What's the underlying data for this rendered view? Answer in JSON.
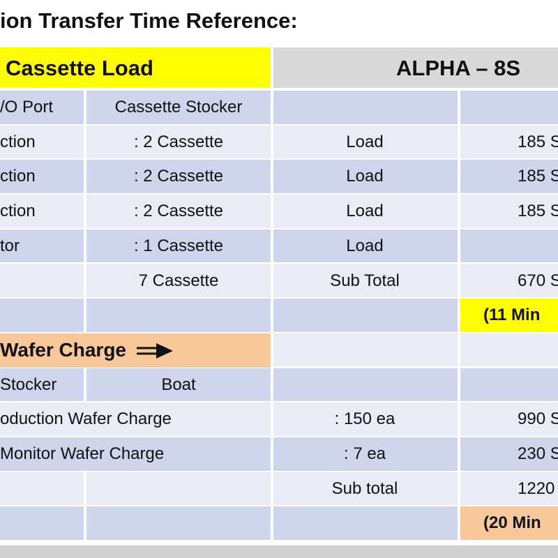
{
  "title": "ion Transfer Time Reference:",
  "section1": {
    "title": "Cassette Load",
    "model": "ALPHA – 8S",
    "rows": [
      {
        "port": "/O Port",
        "stocker": "Cassette Stocker"
      },
      {
        "port": "ction",
        "stocker": ": 2 Cassette",
        "action": "Load",
        "time": "185 S"
      },
      {
        "port": "ction",
        "stocker": ": 2 Cassette",
        "action": "Load",
        "time": "185 S"
      },
      {
        "port": "ction",
        "stocker": ": 2 Cassette",
        "action": "Load",
        "time": "185 S"
      },
      {
        "port": "tor",
        "stocker": ": 1 Cassette",
        "action": "Load"
      },
      {
        "stocker": "7 Cassette",
        "action": "Sub Total",
        "time": "670 S"
      },
      {
        "total": "(11 Min"
      }
    ]
  },
  "section2": {
    "title": "Wafer Charge",
    "rows": [
      {
        "port": "Stocker",
        "stocker": "Boat"
      },
      {
        "item": "oduction Wafer Charge",
        "action": ": 150 ea",
        "time": "990 S"
      },
      {
        "item": "Monitor Wafer Charge",
        "action": ": 7 ea",
        "time": "230 S"
      },
      {
        "action": "Sub total",
        "time": "1220"
      },
      {
        "total": "(20 Min"
      }
    ]
  }
}
